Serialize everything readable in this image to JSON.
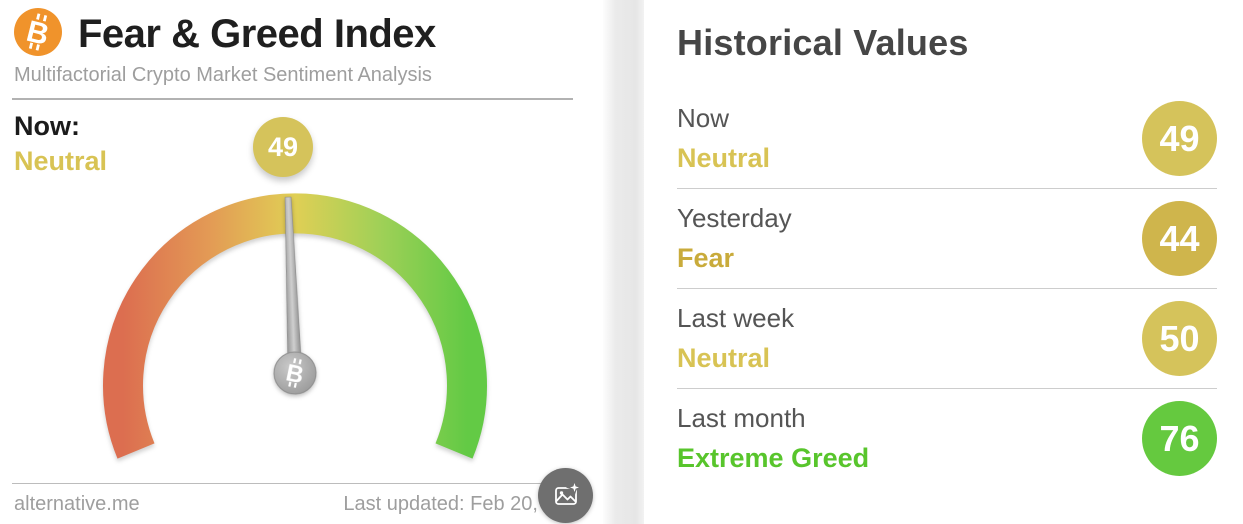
{
  "chart_data": {
    "type": "gauge",
    "title": "Fear & Greed Index",
    "subtitle": "Multifactorial Crypto Market Sentiment Analysis",
    "value": 49,
    "classification": "Neutral",
    "range": [
      0,
      100
    ],
    "arc_sweep_degrees": 225,
    "segment_colors": [
      "#dc6e50",
      "#e39a55",
      "#e0cf55",
      "#9fd057",
      "#63ca45"
    ],
    "historical": [
      {
        "label": "Now",
        "value": 49,
        "classification": "Neutral"
      },
      {
        "label": "Yesterday",
        "value": 44,
        "classification": "Fear"
      },
      {
        "label": "Last week",
        "value": 50,
        "classification": "Neutral"
      },
      {
        "label": "Last month",
        "value": 76,
        "classification": "Extreme Greed"
      }
    ]
  },
  "left_card": {
    "title": "Fear & Greed Index",
    "subtitle": "Multifactorial Crypto Market Sentiment Analysis",
    "now_label": "Now:",
    "now_classification": "Neutral",
    "now_classification_color": "#d8c354",
    "gauge_badge_color": "#d5c35b",
    "footer_source": "alternative.me",
    "footer_updated": "Last updated: Feb 20, 2025"
  },
  "right_panel": {
    "title": "Historical Values",
    "rows": [
      {
        "label": "Now",
        "classification": "Neutral",
        "classification_color": "#d8c354",
        "value": "49",
        "badge_color": "#d5c35b"
      },
      {
        "label": "Yesterday",
        "classification": "Fear",
        "classification_color": "#c9ab3b",
        "value": "44",
        "badge_color": "#cfb54c"
      },
      {
        "label": "Last week",
        "classification": "Neutral",
        "classification_color": "#d8c354",
        "value": "50",
        "badge_color": "#d5c35b"
      },
      {
        "label": "Last month",
        "classification": "Extreme Greed",
        "classification_color": "#58c52c",
        "value": "76",
        "badge_color": "#65c93f"
      }
    ]
  },
  "icons": {
    "bitcoin": "btc-symbol",
    "export": "image-with-sparkle"
  },
  "colors": {
    "bitcoin_orange": "#f0932b",
    "needle_gray": "#a8a8a8",
    "export_button_gray": "#6f6f6f"
  }
}
